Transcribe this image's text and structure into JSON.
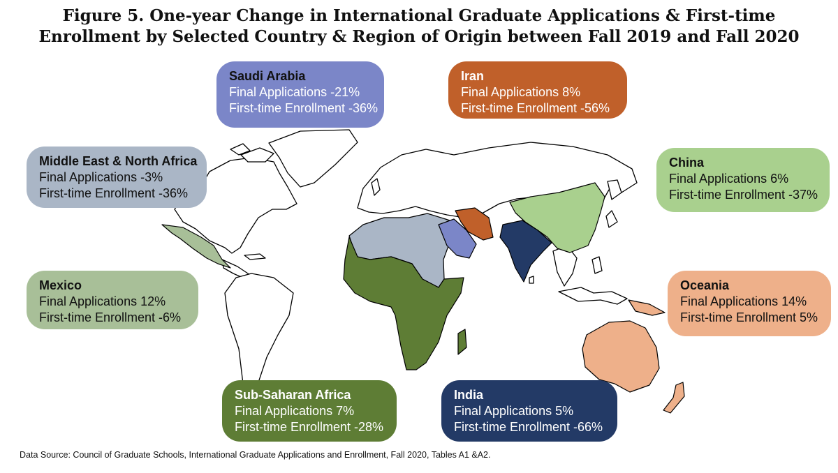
{
  "title_line1": "Figure 5. One-year Change in International Graduate Applications & First-time",
  "title_line2": "Enrollment by Selected Country & Region of Origin between Fall 2019 and Fall 2020",
  "source": "Data Source: Council of Graduate Schools, International Graduate Applications and Enrollment, Fall 2020, Tables A1 &A2.",
  "regions": {
    "saudi_arabia": {
      "name": "Saudi Arabia",
      "applications": "Final Applications -21%",
      "enrollment": "First-time Enrollment -36%",
      "color": "#7b86c8"
    },
    "iran": {
      "name": "Iran",
      "applications": "Final Applications 8%",
      "enrollment": "First-time Enrollment -56%",
      "color": "#c0602a"
    },
    "mena": {
      "name": "Middle East & North Africa",
      "applications": "Final Applications -3%",
      "enrollment": "First-time Enrollment -36%",
      "color": "#aab6c6"
    },
    "china": {
      "name": "China",
      "applications": "Final Applications 6%",
      "enrollment": "First-time Enrollment -37%",
      "color": "#a9d08e"
    },
    "mexico": {
      "name": "Mexico",
      "applications": "Final Applications 12%",
      "enrollment": "First-time Enrollment -6%",
      "color": "#a8bf98"
    },
    "oceania": {
      "name": "Oceania",
      "applications": "Final Applications 14%",
      "enrollment": "First-time Enrollment 5%",
      "color": "#eeb08a"
    },
    "ssa": {
      "name": "Sub-Saharan Africa",
      "applications": "Final Applications 7%",
      "enrollment": "First-time Enrollment -28%",
      "color": "#5e7d35"
    },
    "india": {
      "name": "India",
      "applications": "Final Applications 5%",
      "enrollment": "First-time Enrollment -66%",
      "color": "#233a66"
    }
  }
}
